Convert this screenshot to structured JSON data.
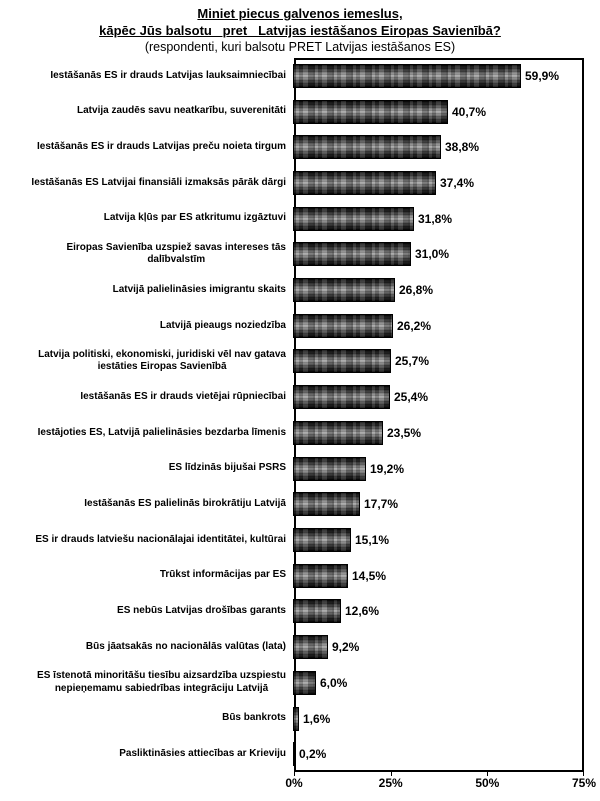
{
  "header": {
    "title_line1": "Miniet piecus galvenos iemeslus,",
    "title_line2": "kāpēc Jūs balsotu   pret   Latvijas iestāšanos Eiropas Savienībā?",
    "subtitle": "(respondenti, kuri balsotu PRET Latvijas iestāšanos ES)"
  },
  "chart_data": {
    "type": "bar",
    "orientation": "horizontal",
    "title": "Miniet piecus galvenos iemeslus, kāpēc Jūs balsotu pret Latvijas iestāšanos Eiropas Savienībā?",
    "subtitle": "(respondenti, kuri balsotu PRET Latvijas iestāšanos ES)",
    "categories": [
      "Iestāšanās ES ir drauds Latvijas lauksaimniecībai",
      "Latvija zaudēs savu neatkarību, suverenitāti",
      "Iestāšanās ES ir drauds Latvijas preču noieta tirgum",
      "Iestāšanās ES Latvijai finansiāli izmaksās pārāk dārgi",
      "Latvija kļūs par ES atkritumu izgāztuvi",
      "Eiropas Savienība uzspiež savas intereses tās\ndalībvalstīm",
      "Latvijā palielināsies imigrantu skaits",
      "Latvijā pieaugs noziedzība",
      "Latvija politiski, ekonomiski, juridiski vēl nav gatava\niestāties Eiropas Savienībā",
      "Iestāšanās ES ir drauds vietējai rūpniecībai",
      "Iestājoties ES, Latvijā palielināsies bezdarba līmenis",
      "ES līdzinās bijušai PSRS",
      "Iestāšanās ES palielinās birokrātiju Latvijā",
      "ES ir drauds latviešu nacionālajai identitātei, kultūrai",
      "Trūkst informācijas par ES",
      "ES nebūs Latvijas drošības garants",
      "Būs jāatsakās no nacionālās valūtas (lata)",
      "ES īstenotā minoritāšu tiesību aizsardzība uzspiestu\nnepieņemamu sabiedrības integrāciju Latvijā",
      "Būs bankrots",
      "Pasliktināsies attiecības ar Krieviju"
    ],
    "values": [
      59.9,
      40.7,
      38.8,
      37.4,
      31.8,
      31.0,
      26.8,
      26.2,
      25.7,
      25.4,
      23.5,
      19.2,
      17.7,
      15.1,
      14.5,
      12.6,
      9.2,
      6.0,
      1.6,
      0.2
    ],
    "value_labels": [
      "59,9%",
      "40,7%",
      "38,8%",
      "37,4%",
      "31,8%",
      "31,0%",
      "26,8%",
      "26,2%",
      "25,7%",
      "25,4%",
      "23,5%",
      "19,2%",
      "17,7%",
      "15,1%",
      "14,5%",
      "12,6%",
      "9,2%",
      "6,0%",
      "1,6%",
      "0,2%"
    ],
    "xlabel": "",
    "ylabel": "",
    "xlim": [
      0,
      75
    ],
    "x_ticks": [
      "0%",
      "25%",
      "50%",
      "75%"
    ],
    "x_tick_values": [
      0,
      25,
      50,
      75
    ],
    "grid": "off",
    "legend": "none",
    "bar_fill_dark": "#0c0c0c",
    "bar_fill_light": "#a2a2a2",
    "bar_border": "#000000",
    "frame_color": "#000000",
    "background": "#ffffff"
  }
}
